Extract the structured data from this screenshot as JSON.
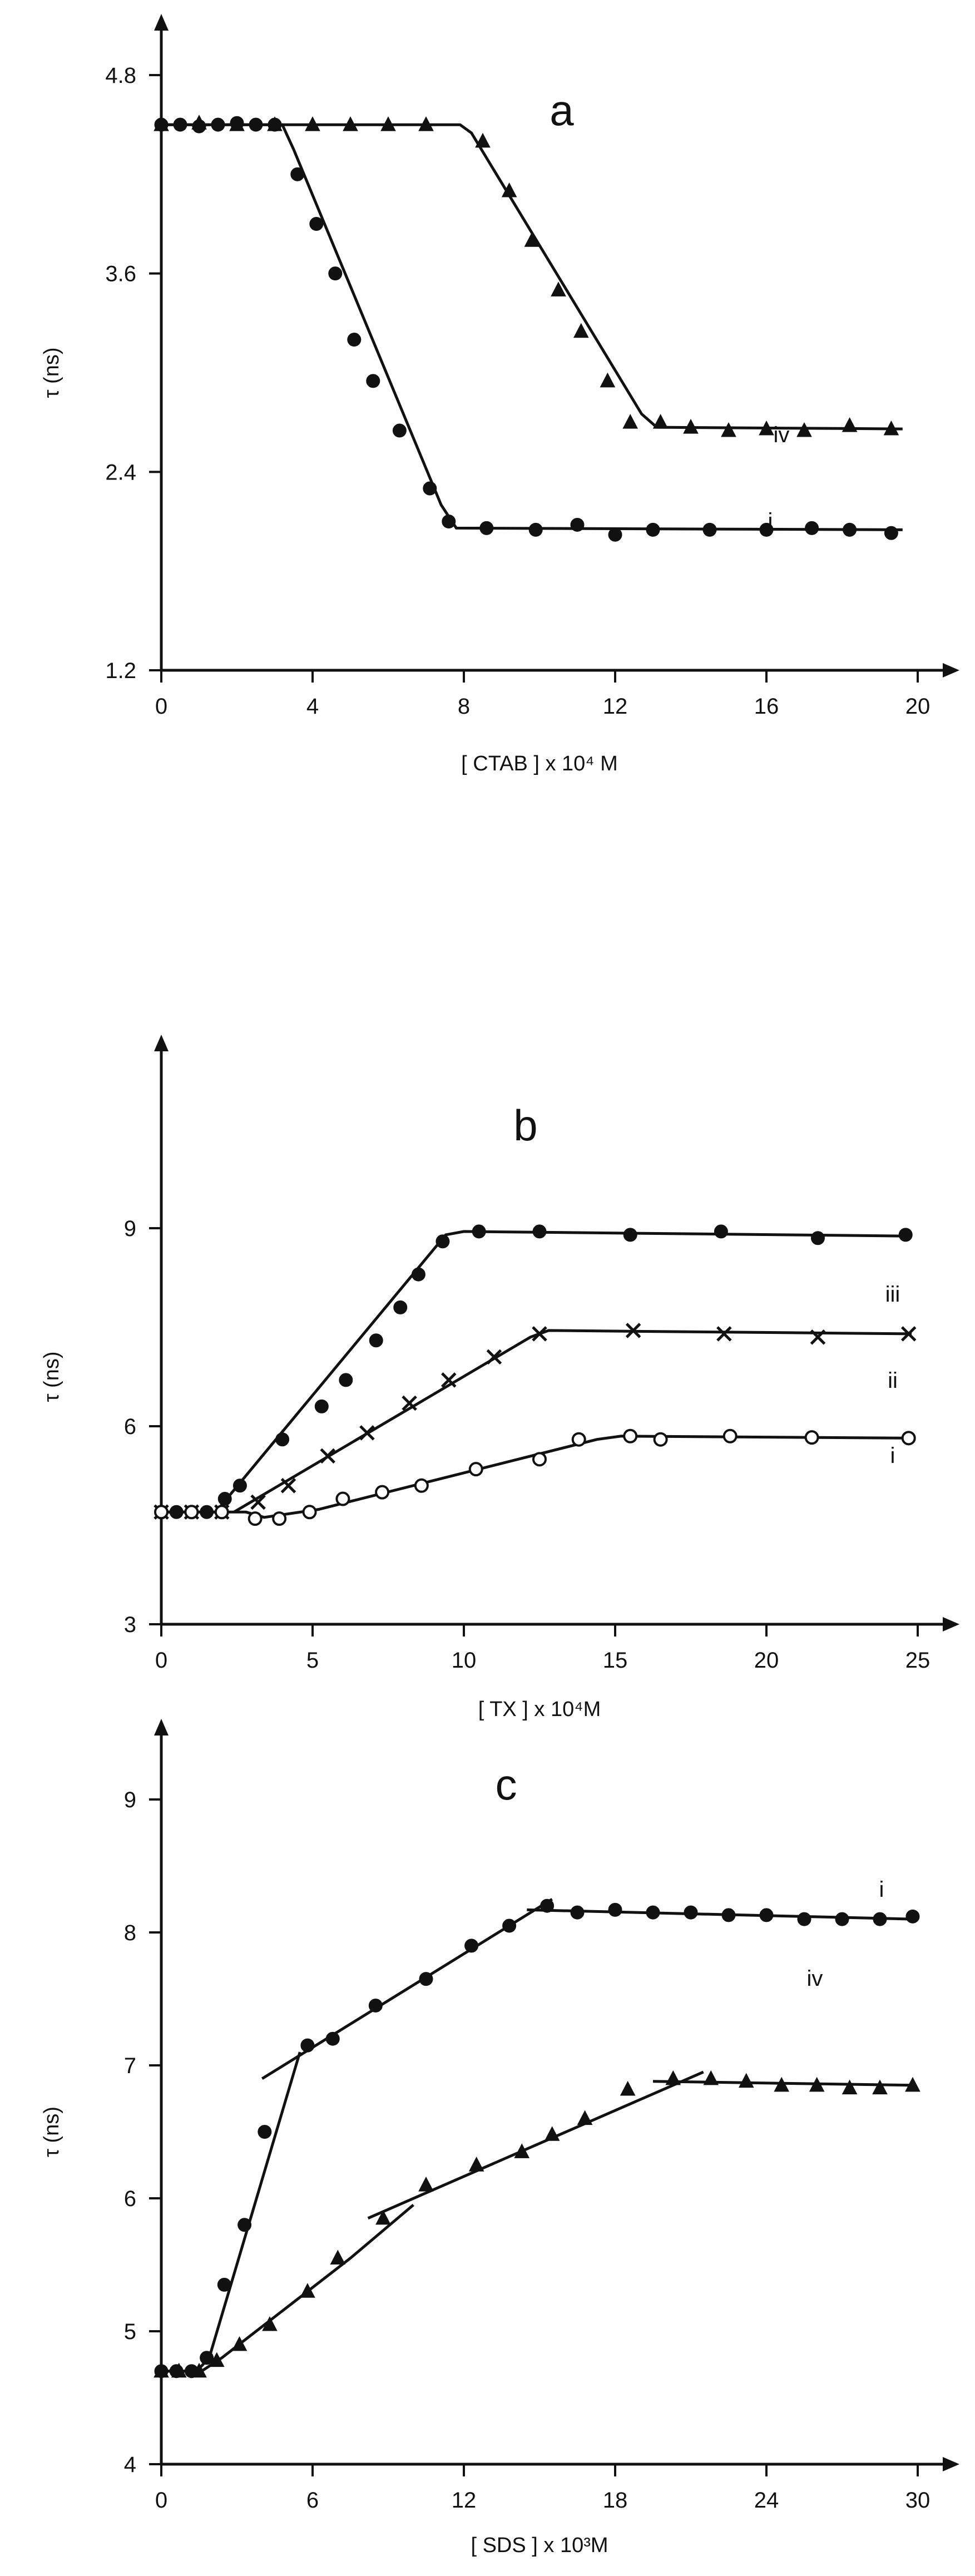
{
  "chart_data": [
    {
      "type": "line",
      "panel_label": "a",
      "xlabel": "[ CTAB ] x 10⁴ M",
      "ylabel": "τ (ns)",
      "xlim": [
        0,
        20
      ],
      "ylim": [
        1.2,
        4.8
      ],
      "x_ticks": [
        0,
        4,
        8,
        12,
        16,
        20
      ],
      "y_ticks": [
        1.2,
        2.4,
        3.6,
        4.8
      ],
      "series": [
        {
          "name": "i",
          "marker": "filled-circle",
          "points": [
            [
              0,
              4.5
            ],
            [
              0.5,
              4.5
            ],
            [
              1,
              4.49
            ],
            [
              1.5,
              4.5
            ],
            [
              2,
              4.51
            ],
            [
              2.5,
              4.5
            ],
            [
              3,
              4.5
            ],
            [
              3.6,
              4.2
            ],
            [
              4.1,
              3.9
            ],
            [
              4.6,
              3.6
            ],
            [
              5.1,
              3.2
            ],
            [
              5.6,
              2.95
            ],
            [
              6.3,
              2.65
            ],
            [
              7.1,
              2.3
            ],
            [
              7.6,
              2.1
            ],
            [
              8.6,
              2.06
            ],
            [
              9.9,
              2.05
            ],
            [
              11,
              2.08
            ],
            [
              12,
              2.02
            ],
            [
              13,
              2.05
            ],
            [
              14.5,
              2.05
            ],
            [
              16,
              2.05
            ],
            [
              17.2,
              2.06
            ],
            [
              18.2,
              2.05
            ],
            [
              19.3,
              2.03
            ]
          ]
        },
        {
          "name": "iv",
          "marker": "filled-triangle",
          "points": [
            [
              0,
              4.5
            ],
            [
              1,
              4.51
            ],
            [
              2,
              4.5
            ],
            [
              3,
              4.5
            ],
            [
              4,
              4.5
            ],
            [
              5,
              4.5
            ],
            [
              6,
              4.5
            ],
            [
              7,
              4.5
            ],
            [
              8.5,
              4.4
            ],
            [
              9.2,
              4.1
            ],
            [
              9.8,
              3.8
            ],
            [
              10.5,
              3.5
            ],
            [
              11.1,
              3.25
            ],
            [
              11.8,
              2.95
            ],
            [
              12.4,
              2.7
            ],
            [
              13.2,
              2.7
            ],
            [
              14,
              2.67
            ],
            [
              15,
              2.65
            ],
            [
              16,
              2.66
            ],
            [
              17,
              2.65
            ],
            [
              18.2,
              2.68
            ],
            [
              19.3,
              2.66
            ]
          ]
        }
      ]
    },
    {
      "type": "line",
      "panel_label": "b",
      "xlabel": "[ TX ] x 10⁴M",
      "ylabel": "τ (ns)",
      "xlim": [
        0,
        25
      ],
      "ylim": [
        3,
        10.5
      ],
      "x_ticks": [
        0,
        5,
        10,
        15,
        20,
        25
      ],
      "y_ticks": [
        3,
        6,
        9
      ],
      "series": [
        {
          "name": "i",
          "marker": "filled-circle",
          "points": [
            [
              0,
              4.7
            ],
            [
              0.5,
              4.7
            ],
            [
              1,
              4.7
            ],
            [
              1.5,
              4.7
            ],
            [
              2.1,
              4.9
            ],
            [
              2.6,
              5.1
            ],
            [
              4,
              5.8
            ],
            [
              5.3,
              6.3
            ],
            [
              6.1,
              6.7
            ],
            [
              7.1,
              7.3
            ],
            [
              7.9,
              7.8
            ],
            [
              8.5,
              8.3
            ],
            [
              9.3,
              8.8
            ],
            [
              10.5,
              8.95
            ],
            [
              12.5,
              8.95
            ],
            [
              15.5,
              8.9
            ],
            [
              18.5,
              8.95
            ],
            [
              21.7,
              8.85
            ],
            [
              24.6,
              8.9
            ]
          ]
        },
        {
          "name": "ii",
          "marker": "cross",
          "points": [
            [
              0,
              4.7
            ],
            [
              1,
              4.7
            ],
            [
              2,
              4.7
            ],
            [
              3.2,
              4.85
            ],
            [
              4.2,
              5.1
            ],
            [
              5.5,
              5.55
            ],
            [
              6.8,
              5.9
            ],
            [
              8.2,
              6.35
            ],
            [
              9.5,
              6.7
            ],
            [
              11,
              7.05
            ],
            [
              12.5,
              7.4
            ],
            [
              15.6,
              7.45
            ],
            [
              18.6,
              7.4
            ],
            [
              21.7,
              7.35
            ],
            [
              24.7,
              7.4
            ]
          ]
        },
        {
          "name": "iii",
          "marker": "open-circle",
          "points": [
            [
              0,
              4.7
            ],
            [
              1,
              4.7
            ],
            [
              2,
              4.7
            ],
            [
              3.1,
              4.6
            ],
            [
              3.9,
              4.6
            ],
            [
              4.9,
              4.7
            ],
            [
              6,
              4.9
            ],
            [
              7.3,
              5.0
            ],
            [
              8.6,
              5.1
            ],
            [
              10.4,
              5.35
            ],
            [
              12.5,
              5.5
            ],
            [
              13.8,
              5.8
            ],
            [
              15.5,
              5.85
            ],
            [
              16.5,
              5.8
            ],
            [
              18.8,
              5.85
            ],
            [
              21.5,
              5.83
            ],
            [
              24.7,
              5.82
            ]
          ]
        }
      ]
    },
    {
      "type": "line",
      "panel_label": "c",
      "xlabel": "[ SDS ] x 10³M",
      "ylabel": "τ (ns)",
      "xlim": [
        0,
        30
      ],
      "ylim": [
        4,
        9
      ],
      "x_ticks": [
        0,
        6,
        12,
        18,
        24,
        30
      ],
      "y_ticks": [
        4,
        5,
        6,
        7,
        8,
        9
      ],
      "series": [
        {
          "name": "i",
          "marker": "filled-circle",
          "points": [
            [
              0,
              4.7
            ],
            [
              0.6,
              4.7
            ],
            [
              1.2,
              4.7
            ],
            [
              1.8,
              4.8
            ],
            [
              2.5,
              5.35
            ],
            [
              3.3,
              5.8
            ],
            [
              4.1,
              6.5
            ],
            [
              5.8,
              7.15
            ],
            [
              6.8,
              7.2
            ],
            [
              8.5,
              7.45
            ],
            [
              10.5,
              7.65
            ],
            [
              12.3,
              7.9
            ],
            [
              13.8,
              8.05
            ],
            [
              15.3,
              8.2
            ],
            [
              16.5,
              8.15
            ],
            [
              18,
              8.17
            ],
            [
              19.5,
              8.15
            ],
            [
              21,
              8.15
            ],
            [
              22.5,
              8.13
            ],
            [
              24,
              8.13
            ],
            [
              25.5,
              8.1
            ],
            [
              27,
              8.1
            ],
            [
              28.5,
              8.1
            ],
            [
              29.8,
              8.12
            ]
          ]
        },
        {
          "name": "iv",
          "marker": "filled-triangle",
          "points": [
            [
              0,
              4.7
            ],
            [
              0.7,
              4.7
            ],
            [
              1.5,
              4.7
            ],
            [
              2.2,
              4.78
            ],
            [
              3.1,
              4.9
            ],
            [
              4.3,
              5.05
            ],
            [
              5.8,
              5.3
            ],
            [
              7,
              5.55
            ],
            [
              8.8,
              5.85
            ],
            [
              10.5,
              6.1
            ],
            [
              12.5,
              6.25
            ],
            [
              14.3,
              6.35
            ],
            [
              15.5,
              6.48
            ],
            [
              16.8,
              6.6
            ],
            [
              18.5,
              6.82
            ],
            [
              20.3,
              6.9
            ],
            [
              21.8,
              6.9
            ],
            [
              23.2,
              6.88
            ],
            [
              24.6,
              6.85
            ],
            [
              26,
              6.85
            ],
            [
              27.3,
              6.83
            ],
            [
              28.5,
              6.83
            ],
            [
              29.8,
              6.85
            ]
          ]
        }
      ]
    }
  ]
}
